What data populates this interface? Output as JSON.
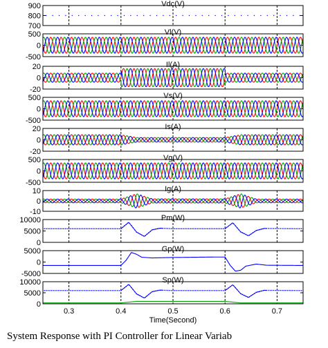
{
  "caption": "System Response with PI Controller for Linear Variab",
  "colors": {
    "phase_a": "#ff0000",
    "phase_b": "#00a000",
    "phase_c": "#0000ff",
    "dc": "#0000ff",
    "grid": "#000000"
  },
  "chart_data": {
    "type": "line",
    "xlabel": "Time(Second)",
    "xlim": [
      0.25,
      0.75
    ],
    "x_ticks": [
      "0.3",
      "0.4",
      "0.5",
      "0.6",
      "0.7"
    ],
    "x_tick_values": [
      0.3,
      0.4,
      0.5,
      0.6,
      0.7
    ],
    "grid": "vertical dashed",
    "panels": [
      {
        "title": "Vdc(V)",
        "ylim": [
          700,
          900
        ],
        "y_ticks": [
          "900",
          "800",
          "700"
        ],
        "y_tick_values": [
          900,
          800,
          700
        ],
        "series": [
          {
            "kind": "dc",
            "points": [
              [
                0.25,
                800
              ],
              [
                0.75,
                800
              ]
            ]
          }
        ]
      },
      {
        "title": "Vl(V)",
        "ylim": [
          -500,
          500
        ],
        "y_ticks": [
          "500",
          "0",
          "-500"
        ],
        "y_tick_values": [
          500,
          0,
          -500
        ],
        "series": [
          {
            "kind": "three-phase",
            "frequency_hz": 50,
            "amplitude": [
              [
                0.25,
                350
              ],
              [
                0.75,
                350
              ]
            ]
          }
        ]
      },
      {
        "title": "Il(A)",
        "ylim": [
          -20,
          20
        ],
        "y_ticks": [
          "20",
          "0",
          "-20"
        ],
        "y_tick_values": [
          20,
          0,
          -20
        ],
        "series": [
          {
            "kind": "three-phase",
            "frequency_hz": 50,
            "amplitude": [
              [
                0.25,
                8
              ],
              [
                0.4,
                8
              ],
              [
                0.401,
                16
              ],
              [
                0.6,
                16
              ],
              [
                0.601,
                8
              ],
              [
                0.75,
                8
              ]
            ]
          }
        ]
      },
      {
        "title": "Vs(V)",
        "ylim": [
          -500,
          500
        ],
        "y_ticks": [
          "500",
          "0",
          "-500"
        ],
        "y_tick_values": [
          500,
          0,
          -500
        ],
        "series": [
          {
            "kind": "three-phase",
            "frequency_hz": 50,
            "amplitude": [
              [
                0.25,
                350
              ],
              [
                0.75,
                350
              ]
            ]
          }
        ]
      },
      {
        "title": "Is(A)",
        "ylim": [
          -20,
          20
        ],
        "y_ticks": [
          "20",
          "0",
          "-20"
        ],
        "y_tick_values": [
          20,
          0,
          -20
        ],
        "series": [
          {
            "kind": "three-phase",
            "frequency_hz": 50,
            "amplitude": [
              [
                0.25,
                9
              ],
              [
                0.4,
                9
              ],
              [
                0.43,
                4
              ],
              [
                0.6,
                4
              ],
              [
                0.63,
                9
              ],
              [
                0.75,
                9
              ]
            ]
          }
        ]
      },
      {
        "title": "Vg(V)",
        "ylim": [
          -500,
          500
        ],
        "y_ticks": [
          "500",
          "0",
          "-500"
        ],
        "y_tick_values": [
          500,
          0,
          -500
        ],
        "series": [
          {
            "kind": "three-phase",
            "frequency_hz": 50,
            "amplitude": [
              [
                0.25,
                350
              ],
              [
                0.75,
                350
              ]
            ]
          }
        ]
      },
      {
        "title": "Ig(A)",
        "ylim": [
          -10,
          10
        ],
        "y_ticks": [
          "10",
          "0",
          "-10"
        ],
        "y_tick_values": [
          10,
          0,
          -10
        ],
        "series": [
          {
            "kind": "three-phase",
            "frequency_hz": 50,
            "amplitude": [
              [
                0.25,
                1.8
              ],
              [
                0.4,
                1.8
              ],
              [
                0.43,
                7
              ],
              [
                0.46,
                2
              ],
              [
                0.6,
                2
              ],
              [
                0.63,
                7
              ],
              [
                0.66,
                1.8
              ],
              [
                0.75,
                1.8
              ]
            ]
          }
        ]
      },
      {
        "title": "Pm(W)",
        "ylim": [
          0,
          10000
        ],
        "y_ticks": [
          "10000",
          "5000",
          "0"
        ],
        "y_tick_values": [
          10000,
          5000,
          0
        ],
        "series": [
          {
            "kind": "dotted",
            "color": "#0000ff",
            "points": [
              [
                0.25,
                6000
              ],
              [
                0.4,
                6000
              ],
              [
                0.415,
                8800
              ],
              [
                0.43,
                4500
              ],
              [
                0.445,
                2600
              ],
              [
                0.46,
                5500
              ],
              [
                0.475,
                6200
              ],
              [
                0.5,
                6000
              ],
              [
                0.6,
                6000
              ],
              [
                0.615,
                8600
              ],
              [
                0.63,
                4600
              ],
              [
                0.645,
                2900
              ],
              [
                0.66,
                5200
              ],
              [
                0.675,
                6100
              ],
              [
                0.75,
                6000
              ]
            ]
          }
        ]
      },
      {
        "title": "Gp(W)",
        "ylim": [
          -5000,
          5000
        ],
        "y_ticks": [
          "5000",
          "0",
          "-5000"
        ],
        "y_tick_values": [
          5000,
          0,
          -5000
        ],
        "series": [
          {
            "kind": "line",
            "color": "#0000ff",
            "points": [
              [
                0.25,
                -1500
              ],
              [
                0.4,
                -1500
              ],
              [
                0.41,
                800
              ],
              [
                0.42,
                4200
              ],
              [
                0.43,
                3400
              ],
              [
                0.44,
                2100
              ],
              [
                0.46,
                1800
              ],
              [
                0.5,
                2000
              ],
              [
                0.58,
                2200
              ],
              [
                0.6,
                2200
              ],
              [
                0.61,
                -1500
              ],
              [
                0.62,
                -4000
              ],
              [
                0.63,
                -3600
              ],
              [
                0.64,
                -1800
              ],
              [
                0.66,
                -900
              ],
              [
                0.68,
                -1400
              ],
              [
                0.75,
                -1500
              ]
            ]
          }
        ]
      },
      {
        "title": "Sp(W)",
        "ylim": [
          0,
          10000
        ],
        "y_ticks": [
          "10000",
          "5000",
          "0"
        ],
        "y_tick_values": [
          10000,
          5000,
          0
        ],
        "series": [
          {
            "kind": "dotted",
            "color": "#0000ff",
            "points": [
              [
                0.25,
                6000
              ],
              [
                0.4,
                6000
              ],
              [
                0.415,
                8800
              ],
              [
                0.43,
                4500
              ],
              [
                0.445,
                2600
              ],
              [
                0.46,
                5500
              ],
              [
                0.475,
                6200
              ],
              [
                0.5,
                6000
              ],
              [
                0.6,
                6000
              ],
              [
                0.615,
                8600
              ],
              [
                0.63,
                4600
              ],
              [
                0.645,
                2900
              ],
              [
                0.66,
                5200
              ],
              [
                0.675,
                6100
              ],
              [
                0.75,
                6000
              ]
            ]
          },
          {
            "kind": "line",
            "color": "#00a000",
            "points": [
              [
                0.25,
                400
              ],
              [
                0.4,
                400
              ],
              [
                0.43,
                1100
              ],
              [
                0.6,
                1100
              ],
              [
                0.63,
                400
              ],
              [
                0.75,
                400
              ]
            ]
          }
        ]
      }
    ]
  }
}
